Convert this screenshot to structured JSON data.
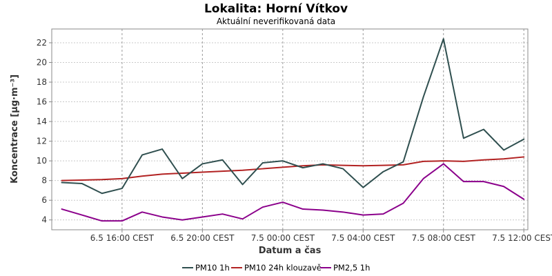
{
  "chart_data": {
    "type": "line",
    "title": "Lokalita: Horní Vítkov",
    "subtitle": "Aktuální neverifikovaná data",
    "xlabel": "Datum a čas",
    "ylabel": "Koncentrace [µg·m⁻³]",
    "ylim": [
      3,
      23.4
    ],
    "yticks": [
      4,
      6,
      8,
      10,
      12,
      14,
      16,
      18,
      20,
      22
    ],
    "x_start_hour": 13,
    "x_range_hours": [
      12.5,
      36.2
    ],
    "xticks": [
      {
        "hour": 16,
        "label": "6.5 16:00 CEST"
      },
      {
        "hour": 20,
        "label": "6.5 20:00 CEST"
      },
      {
        "hour": 24,
        "label": "7.5 00:00 CEST"
      },
      {
        "hour": 28,
        "label": "7.5 04:00 CEST"
      },
      {
        "hour": 32,
        "label": "7.5 08:00 CEST"
      },
      {
        "hour": 36,
        "label": "7.5 12:00 CEST"
      }
    ],
    "grid": true,
    "legend_position": "bottom",
    "series": [
      {
        "name": "PM10 1h",
        "color": "#2f4f4f",
        "values": [
          7.8,
          7.7,
          6.7,
          7.2,
          10.6,
          11.2,
          8.2,
          9.7,
          10.1,
          7.6,
          9.8,
          10.0,
          9.3,
          9.7,
          9.2,
          7.3,
          8.9,
          9.9,
          16.5,
          22.4,
          12.3,
          13.2,
          11.1,
          12.2
        ]
      },
      {
        "name": "PM10 24h klouzavě",
        "color": "#b22222",
        "values": [
          8.0,
          8.05,
          8.1,
          8.2,
          8.45,
          8.65,
          8.75,
          8.85,
          8.95,
          9.05,
          9.2,
          9.35,
          9.5,
          9.6,
          9.55,
          9.5,
          9.55,
          9.6,
          9.95,
          10.0,
          9.95,
          10.1,
          10.2,
          10.4
        ]
      },
      {
        "name": "PM2,5 1h",
        "color": "#8b008b",
        "values": [
          5.1,
          4.5,
          3.9,
          3.9,
          4.8,
          4.3,
          4.0,
          4.3,
          4.6,
          4.1,
          5.3,
          5.8,
          5.1,
          5.0,
          4.8,
          4.5,
          4.6,
          5.7,
          8.2,
          9.7,
          7.9,
          7.9,
          7.4,
          6.1
        ]
      }
    ]
  }
}
